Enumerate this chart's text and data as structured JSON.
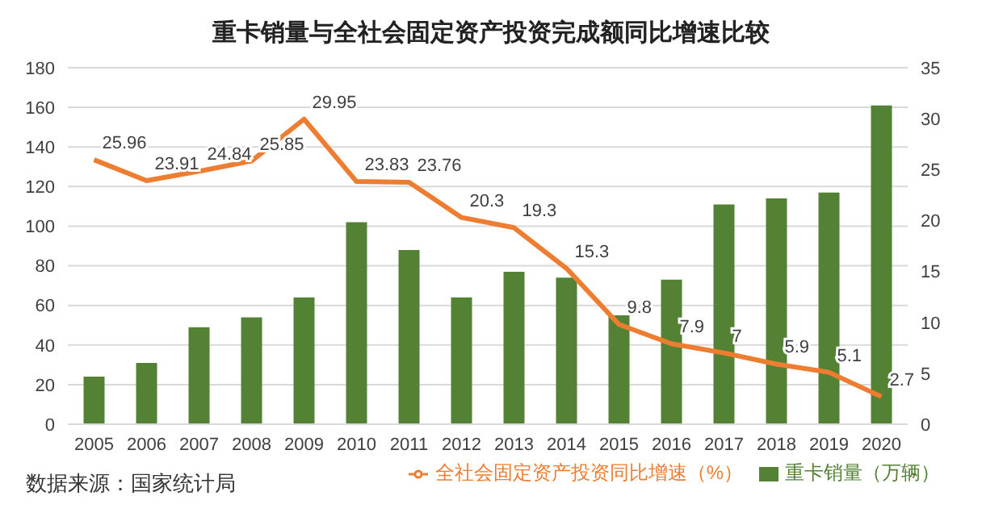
{
  "chart_data": {
    "type": "bar",
    "title": "重卡销量与全社会固定资产投资完成额同比增速比较",
    "categories": [
      "2005",
      "2006",
      "2007",
      "2008",
      "2009",
      "2010",
      "2011",
      "2012",
      "2013",
      "2014",
      "2015",
      "2016",
      "2017",
      "2018",
      "2019",
      "2020"
    ],
    "series": [
      {
        "name": "重卡销量（万辆）",
        "color": "#548235",
        "values": [
          24,
          31,
          49,
          54,
          64,
          102,
          88,
          64,
          77,
          74,
          55,
          73,
          111,
          114,
          117,
          161
        ]
      },
      {
        "name": "全社会固定资产投资同比增速（%）",
        "type": "line",
        "axis": "y2",
        "color": "#ed7d31",
        "values": [
          25.96,
          23.91,
          24.84,
          25.85,
          29.95,
          23.83,
          23.76,
          20.3,
          19.3,
          15.3,
          9.8,
          7.9,
          7,
          5.9,
          5.1,
          2.7
        ],
        "data_labels": true
      }
    ],
    "ylim": [
      0,
      180
    ],
    "yticks": [
      0,
      20,
      40,
      60,
      80,
      100,
      120,
      140,
      160,
      180
    ],
    "y2lim": [
      0,
      35
    ],
    "y2ticks": [
      0,
      5,
      10,
      15,
      20,
      25,
      30,
      35
    ],
    "grid": "y",
    "legend": "bottom",
    "marker": "none",
    "annotations": [
      "数据来源：国家统计局"
    ]
  }
}
